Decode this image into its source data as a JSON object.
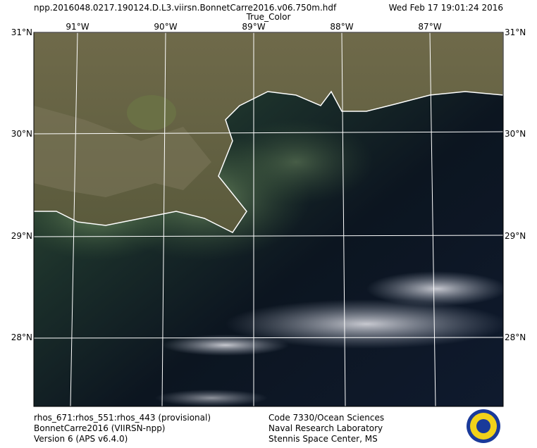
{
  "header": {
    "file": "npp.2016048.0217.190124.D.L3.viirsn.BonnetCarre2016.v06.750m.hdf",
    "date": "Wed Feb 17 19:01:24 2016",
    "product": "True_Color"
  },
  "map": {
    "lon_labels": [
      "91°W",
      "90°W",
      "89°W",
      "88°W",
      "87°W"
    ],
    "lat_labels": [
      "31°N",
      "30°N",
      "29°N",
      "28°N"
    ]
  },
  "footer": {
    "left": [
      "rhos_671:rhos_551:rhos_443 (provisional)",
      "BonnetCarre2016 (VIIRSN-npp)",
      "Version 6 (APS v6.4.0)"
    ],
    "center": [
      "Code 7330/Ocean Sciences",
      "Naval Research Laboratory",
      "Stennis Space Center, MS"
    ]
  }
}
